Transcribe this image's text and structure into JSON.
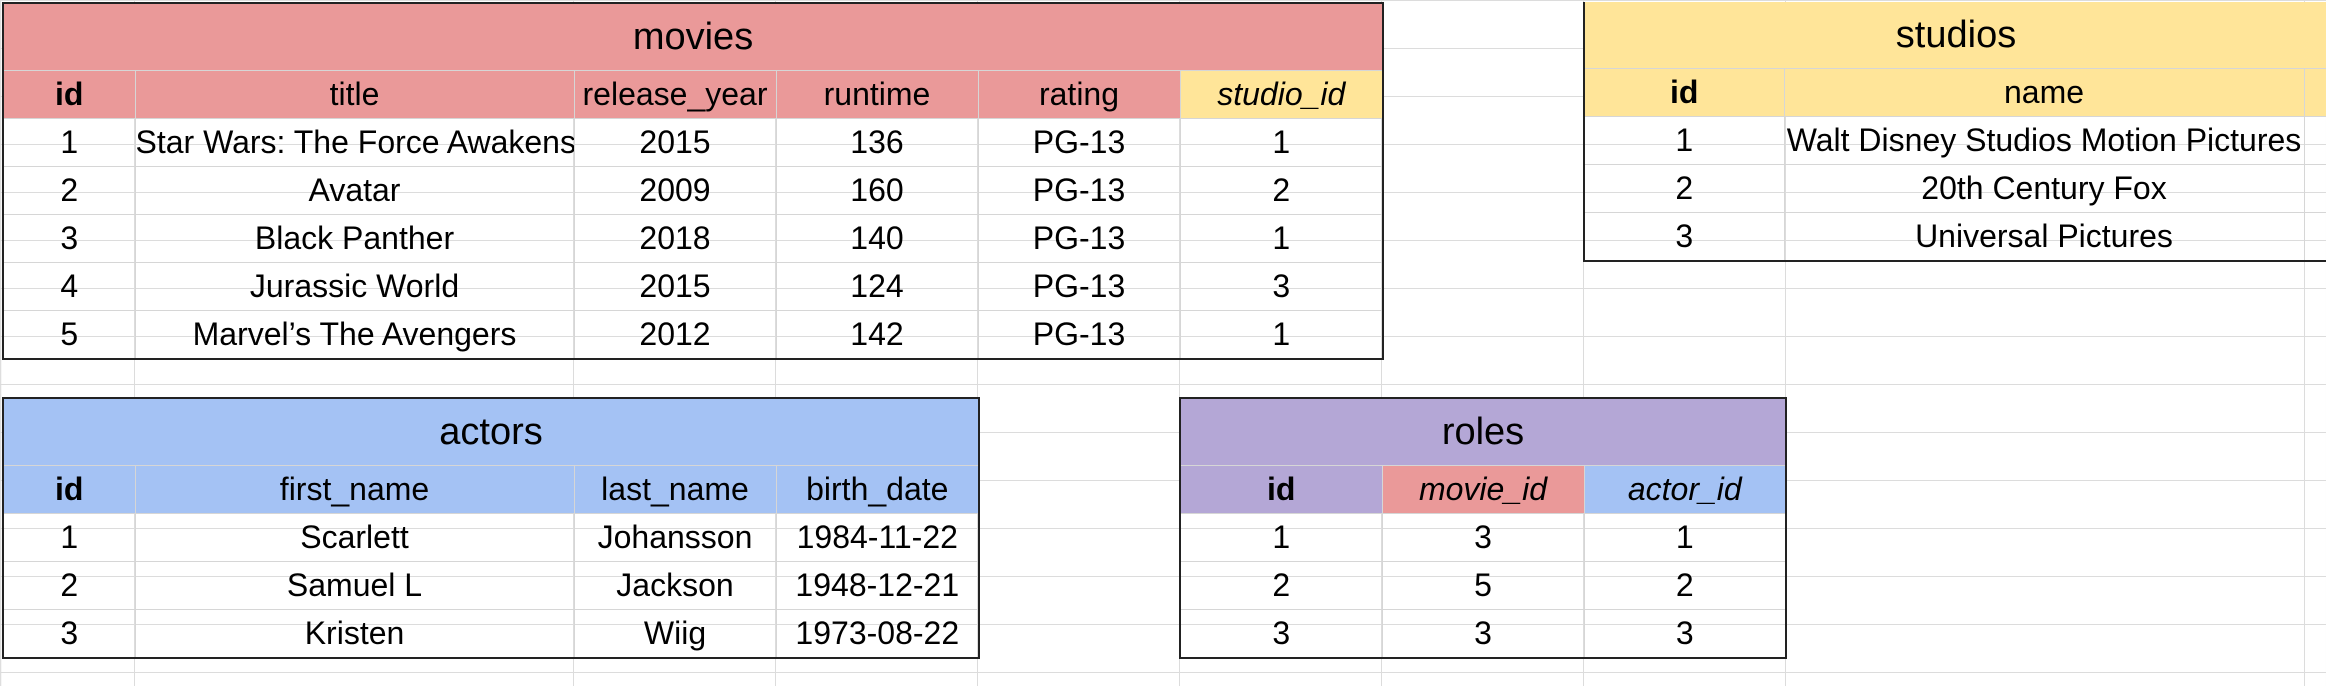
{
  "colors": {
    "movies": "#ea9999",
    "studios": "#ffe599",
    "actors": "#a4c2f4",
    "roles": "#b4a7d6"
  },
  "movies": {
    "title": "movies",
    "headers": [
      "id",
      "title",
      "release_year",
      "runtime",
      "rating",
      "studio_id"
    ],
    "rows": [
      [
        "1",
        "Star Wars: The Force Awakens",
        "2015",
        "136",
        "PG-13",
        "1"
      ],
      [
        "2",
        "Avatar",
        "2009",
        "160",
        "PG-13",
        "2"
      ],
      [
        "3",
        "Black Panther",
        "2018",
        "140",
        "PG-13",
        "1"
      ],
      [
        "4",
        "Jurassic World",
        "2015",
        "124",
        "PG-13",
        "3"
      ],
      [
        "5",
        "Marvel’s The Avengers",
        "2012",
        "142",
        "PG-13",
        "1"
      ]
    ]
  },
  "studios": {
    "title": "studios",
    "headers": [
      "id",
      "name"
    ],
    "rows": [
      [
        "1",
        "Walt Disney Studios Motion Pictures"
      ],
      [
        "2",
        "20th Century Fox"
      ],
      [
        "3",
        "Universal Pictures"
      ]
    ]
  },
  "actors": {
    "title": "actors",
    "headers": [
      "id",
      "first_name",
      "last_name",
      "birth_date"
    ],
    "rows": [
      [
        "1",
        "Scarlett",
        "Johansson",
        "1984-11-22"
      ],
      [
        "2",
        "Samuel L",
        "Jackson",
        "1948-12-21"
      ],
      [
        "3",
        "Kristen",
        "Wiig",
        "1973-08-22"
      ]
    ]
  },
  "roles": {
    "title": "roles",
    "headers": [
      "id",
      "movie_id",
      "actor_id"
    ],
    "rows": [
      [
        "1",
        "3",
        "1"
      ],
      [
        "2",
        "5",
        "2"
      ],
      [
        "3",
        "3",
        "3"
      ]
    ]
  }
}
